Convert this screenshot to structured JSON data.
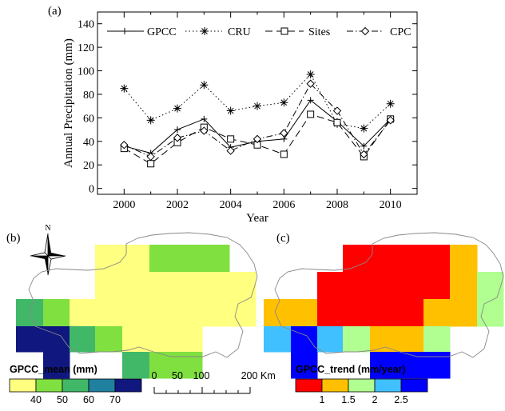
{
  "colors": {
    "mean_palette": [
      "#ffff80",
      "#80e040",
      "#40b868",
      "#2080a0",
      "#101880"
    ],
    "trend_palette": [
      "#ff0000",
      "#ffc000",
      "#b0ff90",
      "#40c0ff",
      "#0000ff"
    ]
  },
  "chart_data": [
    {
      "panel_label": "(a)",
      "type": "line",
      "title": "",
      "xlabel": "Year",
      "ylabel": "Annual Precipitation (mm)",
      "xlim": [
        1999,
        2011
      ],
      "ylim": [
        -5,
        150
      ],
      "xticks": [
        2000,
        2002,
        2004,
        2006,
        2008,
        2010
      ],
      "yticks": [
        0,
        20,
        40,
        60,
        80,
        100,
        120,
        140
      ],
      "x": [
        2000,
        2001,
        2002,
        2003,
        2004,
        2005,
        2006,
        2007,
        2008,
        2009,
        2010
      ],
      "legend_position": "top",
      "series": [
        {
          "name": "GPCC",
          "style": "solid",
          "marker": "plus",
          "values": [
            36,
            30,
            50,
            59,
            35,
            40,
            42,
            75,
            57,
            36,
            59
          ]
        },
        {
          "name": "CRU",
          "style": "dotted",
          "marker": "asterisk",
          "values": [
            85,
            58,
            68,
            88,
            66,
            70,
            73,
            97,
            55,
            51,
            72
          ]
        },
        {
          "name": "Sites",
          "style": "dashed",
          "marker": "square",
          "values": [
            34,
            21,
            39,
            52,
            42,
            37,
            29,
            63,
            56,
            27,
            59
          ]
        },
        {
          "name": "CPC",
          "style": "dashdot",
          "marker": "diamond",
          "values": [
            37,
            27,
            43,
            49,
            32,
            42,
            47,
            89,
            66,
            29,
            58
          ]
        }
      ]
    },
    {
      "panel_label": "(b)",
      "type": "heatmap",
      "legend_title": "GPCC_mean (mm)",
      "legend_ticks": [
        "40",
        "50",
        "60",
        "70"
      ],
      "levels": [
        35,
        45,
        55,
        65,
        75
      ],
      "grid_rows": [
        [
          null,
          null,
          null,
          35,
          35,
          45,
          45,
          45,
          null
        ],
        [
          null,
          null,
          null,
          35,
          35,
          35,
          35,
          35,
          35
        ],
        [
          55,
          45,
          35,
          35,
          35,
          35,
          35,
          35,
          35
        ],
        [
          75,
          75,
          55,
          45,
          35,
          35,
          35,
          null,
          null
        ],
        [
          null,
          75,
          null,
          null,
          55,
          45,
          45,
          null,
          null
        ]
      ]
    },
    {
      "panel_label": "(c)",
      "type": "heatmap",
      "legend_title": "GPCC_trend (mm/year)",
      "legend_ticks": [
        "1",
        "1.5",
        "2",
        "2.5"
      ],
      "levels": [
        0.75,
        1.25,
        1.75,
        2.25,
        2.75
      ],
      "grid_rows": [
        [
          null,
          null,
          null,
          0.75,
          0.75,
          0.75,
          0.75,
          1.25,
          null
        ],
        [
          null,
          null,
          0.75,
          0.75,
          0.75,
          0.75,
          0.75,
          1.25,
          1.75
        ],
        [
          1.25,
          1.25,
          0.75,
          0.75,
          0.75,
          0.75,
          1.25,
          1.25,
          1.75
        ],
        [
          2.25,
          2.75,
          2.25,
          1.75,
          1.25,
          1.25,
          1.75,
          null,
          null
        ],
        [
          null,
          2.75,
          null,
          null,
          2.75,
          2.75,
          2.75,
          null,
          null
        ]
      ]
    }
  ],
  "map": {
    "north_label": "N",
    "scale_ticks": [
      "0",
      "50",
      "100",
      "200"
    ],
    "scale_unit": "Km"
  }
}
